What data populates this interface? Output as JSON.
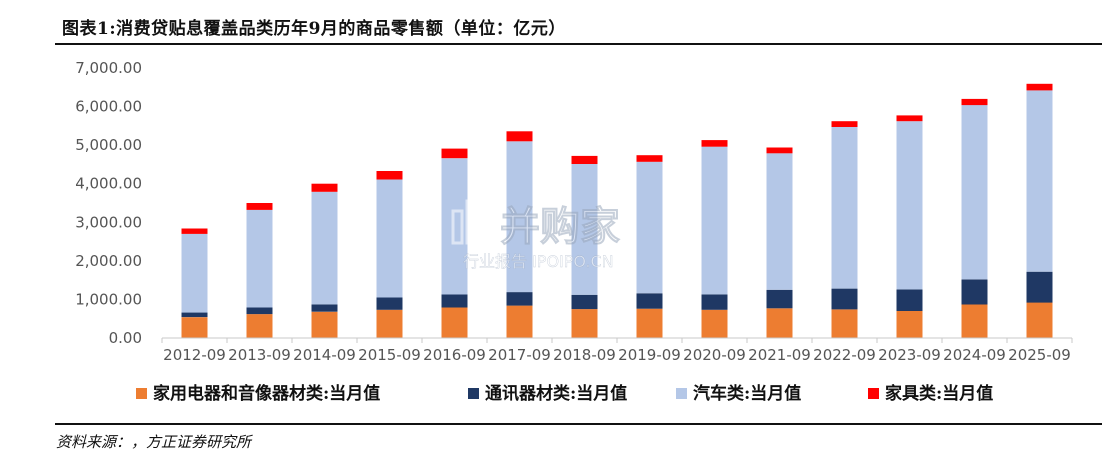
{
  "title": "图表1:消费贷贴息覆盖品类历年9月的商品零售额（单位：亿元）",
  "source": "资料来源：，方正证券研究所",
  "watermark": {
    "main": "并购家",
    "sub": "行业报告 IPOIPO.CN"
  },
  "colors": {
    "appliance": "#ED7D31",
    "telecom": "#1F3864",
    "auto": "#B4C7E7",
    "furniture": "#FF0000"
  },
  "chart_data": {
    "type": "bar",
    "stacked": true,
    "categories": [
      "2012-09",
      "2013-09",
      "2014-09",
      "2015-09",
      "2016-09",
      "2017-09",
      "2018-09",
      "2019-09",
      "2020-09",
      "2021-09",
      "2022-09",
      "2023-09",
      "2024-09",
      "2025-09"
    ],
    "ylim": [
      0,
      7000
    ],
    "yticks": [
      "0.00",
      "1,000.00",
      "2,000.00",
      "3,000.00",
      "4,000.00",
      "5,000.00",
      "6,000.00",
      "7,000.00"
    ],
    "ytick_values": [
      0,
      1000,
      2000,
      3000,
      4000,
      5000,
      6000,
      7000
    ],
    "grid": false,
    "legend_position": "bottom",
    "series": [
      {
        "name": "家用电器和音像器材类:当月值",
        "color_key": "appliance",
        "values": [
          540,
          620,
          680,
          730,
          790,
          840,
          750,
          760,
          730,
          770,
          740,
          700,
          870,
          920
        ]
      },
      {
        "name": "通讯器材类:当月值",
        "color_key": "telecom",
        "values": [
          120,
          170,
          190,
          320,
          340,
          350,
          370,
          400,
          400,
          480,
          540,
          560,
          650,
          800
        ]
      },
      {
        "name": "汽车类:当月值",
        "color_key": "auto",
        "values": [
          2040,
          2530,
          2920,
          3060,
          3530,
          3910,
          3390,
          3410,
          3830,
          3540,
          4190,
          4360,
          4520,
          4700
        ]
      },
      {
        "name": "家具类:当月值",
        "color_key": "furniture",
        "values": [
          140,
          180,
          210,
          220,
          250,
          260,
          210,
          170,
          170,
          150,
          150,
          150,
          160,
          170
        ]
      }
    ]
  }
}
